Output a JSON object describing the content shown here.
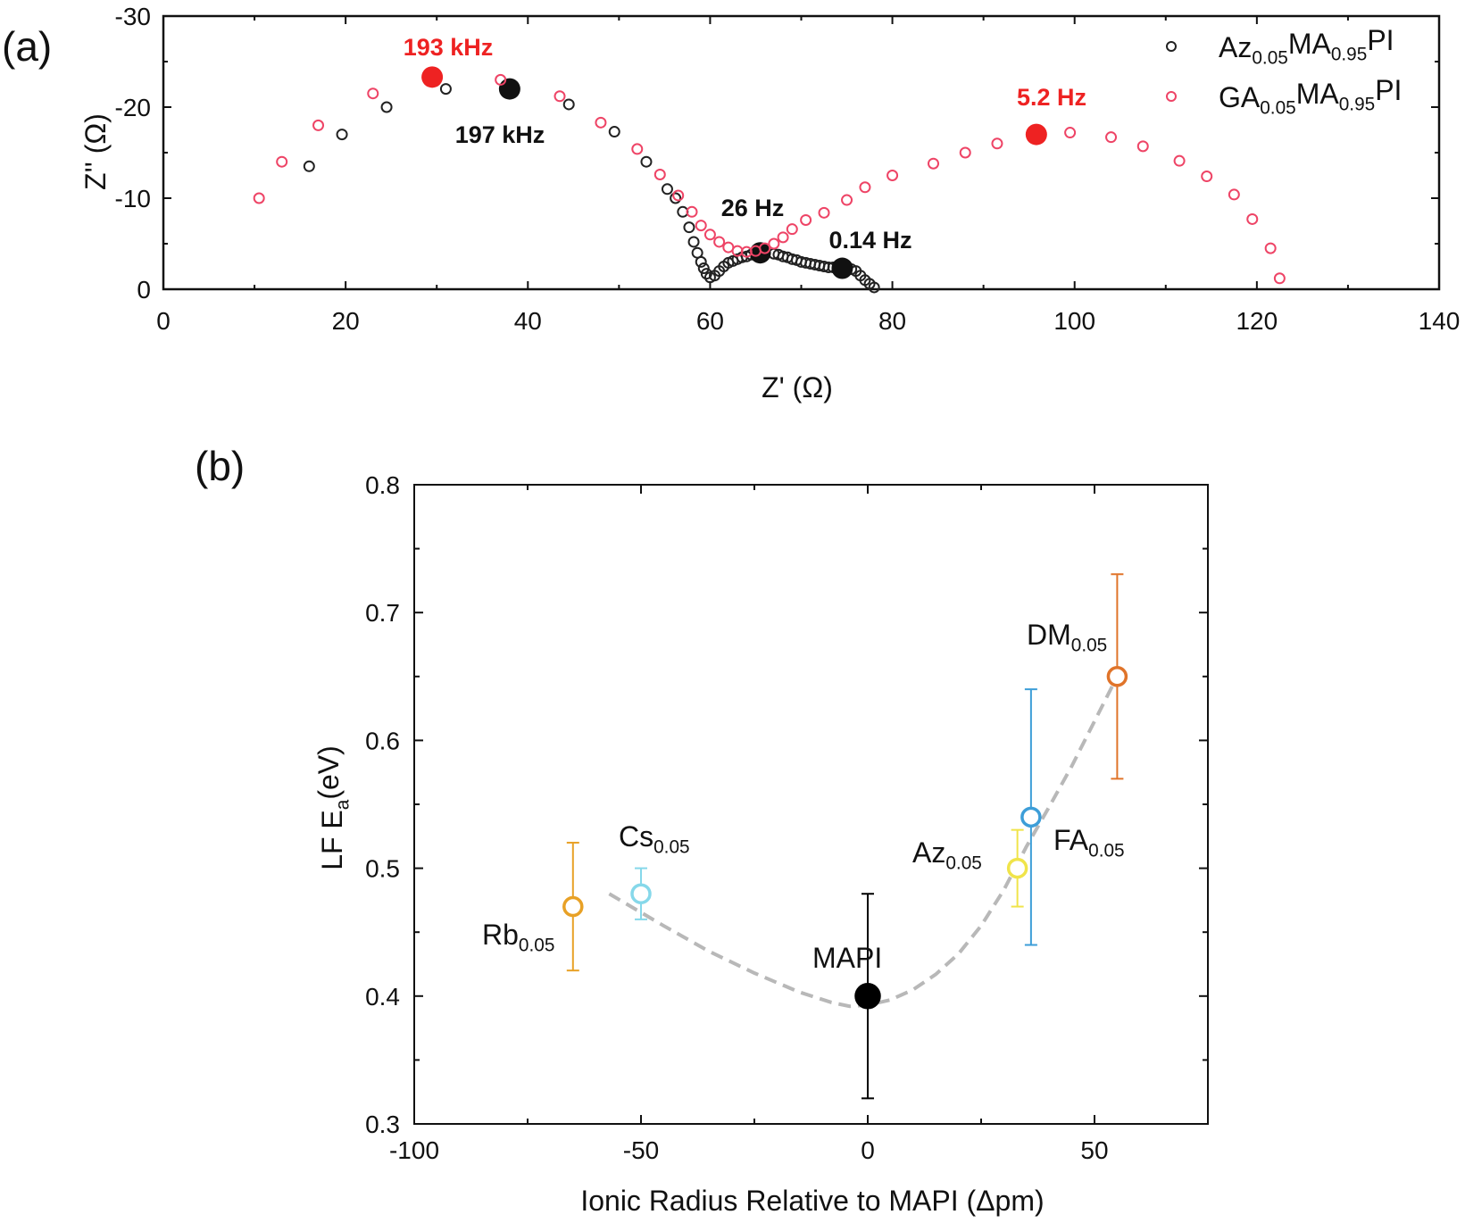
{
  "chart_data": [
    {
      "type": "scatter",
      "panel_label": "(a)",
      "xlabel": "Z' (Ω)",
      "ylabel": "Z'' (Ω)",
      "xlim": [
        0,
        140
      ],
      "ylim": [
        0,
        -30
      ],
      "xticks": [
        0,
        20,
        40,
        60,
        80,
        100,
        120,
        140
      ],
      "yticks": [
        0,
        -10,
        -20,
        -30
      ],
      "yticklabels": [
        "0",
        "-10",
        "-20",
        "-30"
      ],
      "legend_placement": "top-right",
      "series": [
        {
          "name": "Az0.05MA0.95PI",
          "legend": [
            [
              "Az",
              false
            ],
            [
              "0.05",
              true
            ],
            [
              "MA",
              false
            ],
            [
              "0.95",
              true
            ],
            [
              "PI",
              false
            ]
          ],
          "color": "#222222",
          "x": [
            16,
            19.6,
            24.5,
            31,
            44.5,
            49.5,
            53,
            55.3,
            56.2,
            57,
            57.7,
            58.2,
            58.6,
            59,
            59.3,
            59.6,
            60,
            60.5,
            61,
            61.5,
            62,
            62.5,
            63,
            63.5,
            64,
            64.5,
            65,
            66,
            67,
            67.5,
            68,
            68.5,
            69,
            69.5,
            70,
            70.5,
            71,
            71.5,
            72,
            72.5,
            73,
            73.5,
            74,
            75,
            75.5,
            76,
            76.5,
            77,
            77.5,
            78
          ],
          "y": [
            -13.5,
            -17,
            -20,
            -22,
            -20.3,
            -17.3,
            -14,
            -11,
            -10,
            -8.5,
            -6.8,
            -5.2,
            -4,
            -3,
            -2.3,
            -1.7,
            -1.3,
            -1.5,
            -2,
            -2.5,
            -2.9,
            -3.1,
            -3.3,
            -3.5,
            -3.6,
            -3.8,
            -3.9,
            -4,
            -3.9,
            -3.8,
            -3.6,
            -3.5,
            -3.3,
            -3.2,
            -3,
            -2.9,
            -2.8,
            -2.7,
            -2.6,
            -2.5,
            -2.4,
            -2.4,
            -2.3,
            -2.3,
            -2.2,
            -2,
            -1.5,
            -1,
            -0.6,
            -0.2
          ],
          "highlights": [
            {
              "x": 38,
              "y": -22,
              "label": "197 kHz"
            },
            {
              "x": 65.5,
              "y": -4,
              "label": "26 Hz"
            },
            {
              "x": 74.5,
              "y": -2.3,
              "label": "0.14 Hz"
            }
          ]
        },
        {
          "name": "GA0.05MA0.95PI",
          "legend": [
            [
              "GA",
              false
            ],
            [
              "0.05",
              true
            ],
            [
              "MA",
              false
            ],
            [
              "0.95",
              true
            ],
            [
              "PI",
              false
            ]
          ],
          "color": "#ee4466",
          "x": [
            10.5,
            13,
            17,
            23,
            37,
            43.5,
            48,
            52,
            54.5,
            56.5,
            58,
            59,
            60,
            61,
            62,
            63,
            64,
            65,
            66,
            67,
            68,
            69,
            70.5,
            72.5,
            75,
            77,
            80,
            84.5,
            88,
            91.5,
            99.5,
            104,
            107.5,
            111.5,
            114.5,
            117.5,
            119.5,
            121.5,
            122.5
          ],
          "y": [
            -10,
            -14,
            -18,
            -21.5,
            -23,
            -21.2,
            -18.3,
            -15.4,
            -12.6,
            -10.3,
            -8.5,
            -7,
            -6,
            -5.2,
            -4.6,
            -4.2,
            -4.1,
            -4.2,
            -4.5,
            -5,
            -5.7,
            -6.6,
            -7.6,
            -8.4,
            -9.8,
            -11.2,
            -12.5,
            -13.8,
            -15,
            -16,
            -17.2,
            -16.7,
            -15.7,
            -14.1,
            -12.4,
            -10.4,
            -7.7,
            -4.5,
            -1.2
          ],
          "highlights": [
            {
              "x": 29.5,
              "y": -23.3,
              "label": "193 kHz"
            },
            {
              "x": 95.8,
              "y": -17,
              "label": "5.2 Hz"
            }
          ]
        }
      ]
    },
    {
      "type": "scatter",
      "panel_label": "(b)",
      "xlabel": "Ionic Radius Relative to MAPI (Δpm)",
      "ylabel": [
        [
          "LF E",
          false
        ],
        [
          "a",
          true
        ],
        [
          "(eV)",
          false
        ]
      ],
      "xlim": [
        -100,
        75
      ],
      "ylim": [
        0.3,
        0.8
      ],
      "xticks": [
        -100,
        -50,
        0,
        50
      ],
      "yticks": [
        0.3,
        0.4,
        0.5,
        0.6,
        0.7,
        0.8
      ],
      "yticklabels": [
        "0.3",
        "0.4",
        "0.5",
        "0.6",
        "0.7",
        "0.8"
      ],
      "points": [
        {
          "name": "Rb0.05",
          "label": [
            [
              "Rb",
              false
            ],
            [
              "0.05",
              true
            ]
          ],
          "x": -65,
          "y": 0.47,
          "err_low": 0.42,
          "err_high": 0.52,
          "color": "#e8a126",
          "filled": false
        },
        {
          "name": "Cs0.05",
          "label": [
            [
              "Cs",
              false
            ],
            [
              "0.05",
              true
            ]
          ],
          "x": -50,
          "y": 0.48,
          "err_low": 0.46,
          "err_high": 0.5,
          "color": "#86d8ea",
          "filled": false
        },
        {
          "name": "MAPI",
          "label": [
            [
              "MAPI",
              false
            ]
          ],
          "x": 0,
          "y": 0.4,
          "err_low": 0.32,
          "err_high": 0.48,
          "color": "#000000",
          "filled": true
        },
        {
          "name": "Az0.05",
          "label": [
            [
              "Az",
              false
            ],
            [
              "0.05",
              true
            ]
          ],
          "x": 33,
          "y": 0.5,
          "err_low": 0.47,
          "err_high": 0.53,
          "color": "#f0e44a",
          "filled": false
        },
        {
          "name": "FA0.05",
          "label": [
            [
              "FA",
              false
            ],
            [
              "0.05",
              true
            ]
          ],
          "x": 36,
          "y": 0.54,
          "err_low": 0.44,
          "err_high": 0.64,
          "color": "#3d9ed8",
          "filled": false
        },
        {
          "name": "DM0.05",
          "label": [
            [
              "DM",
              false
            ],
            [
              "0.05",
              true
            ]
          ],
          "x": 55,
          "y": 0.65,
          "err_low": 0.57,
          "err_high": 0.73,
          "color": "#e0742a",
          "filled": false
        }
      ],
      "fit": {
        "style": "dashed",
        "color": "#b8b8b8",
        "x": [
          -57,
          -45,
          -35,
          -25,
          -15,
          -8,
          -4,
          0,
          5,
          10,
          15,
          20,
          25,
          30,
          35,
          40,
          45,
          50,
          55
        ],
        "y": [
          0.48,
          0.455,
          0.435,
          0.418,
          0.403,
          0.395,
          0.392,
          0.393,
          0.397,
          0.405,
          0.417,
          0.433,
          0.455,
          0.483,
          0.517,
          0.548,
          0.58,
          0.615,
          0.65
        ]
      }
    }
  ]
}
